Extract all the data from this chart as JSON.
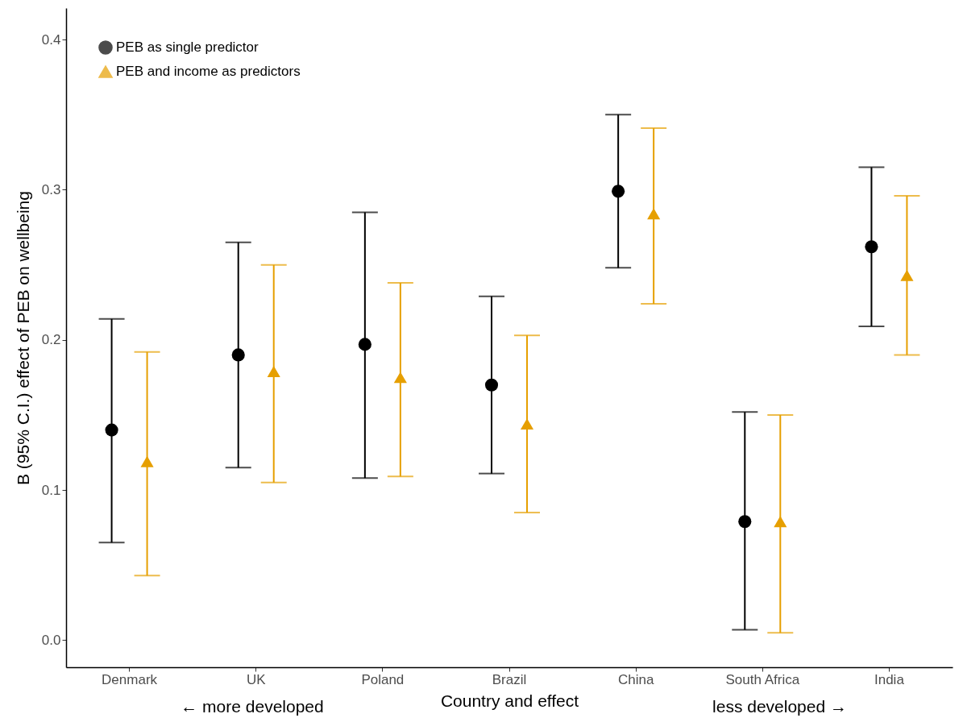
{
  "chart_data": {
    "type": "scatter",
    "xlabel": "Country and effect",
    "ylabel": "B (95% C.I.) effect of PEB on wellbeing",
    "annotations": [
      "← more developed",
      "less developed →"
    ],
    "categories": [
      "Denmark",
      "UK",
      "Poland",
      "Brazil",
      "China",
      "South Africa",
      "India"
    ],
    "series": [
      {
        "name": "PEB as single predictor",
        "color": "#000000",
        "marker": "circle",
        "values": [
          0.14,
          0.19,
          0.197,
          0.17,
          0.299,
          0.079,
          0.262
        ],
        "errors": [
          [
            0.065,
            0.214
          ],
          [
            0.115,
            0.265
          ],
          [
            0.108,
            0.285
          ],
          [
            0.111,
            0.229
          ],
          [
            0.248,
            0.35
          ],
          [
            0.007,
            0.152
          ],
          [
            0.209,
            0.315
          ]
        ]
      },
      {
        "name": "PEB and income as predictors",
        "color": "#e69f00",
        "marker": "triangle",
        "values": [
          0.119,
          0.179,
          0.175,
          0.144,
          0.284,
          0.079,
          0.243
        ],
        "errors": [
          [
            0.043,
            0.192
          ],
          [
            0.105,
            0.25
          ],
          [
            0.109,
            0.238
          ],
          [
            0.085,
            0.203
          ],
          [
            0.224,
            0.341
          ],
          [
            0.005,
            0.15
          ],
          [
            0.19,
            0.296
          ]
        ]
      }
    ],
    "ylim": [
      -0.018,
      0.421
    ],
    "yticks": [
      {
        "value": 0,
        "label": "0.0"
      },
      0.1,
      0.2,
      0.3,
      0.4
    ],
    "grid": false,
    "legend": "top left"
  }
}
